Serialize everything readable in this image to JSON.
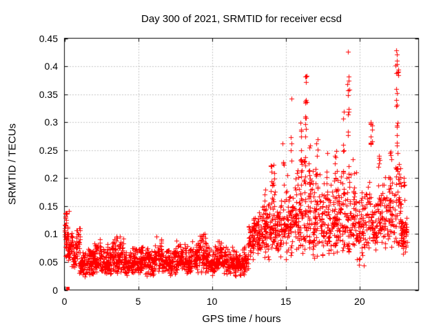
{
  "chart_data": {
    "type": "scatter",
    "title": "Day 300 of 2021, SRMTID for receiver ecsd",
    "xlabel": "GPS time / hours",
    "ylabel": "SRMTID / TECUs",
    "xlim": [
      0,
      24
    ],
    "ylim": [
      0,
      0.45
    ],
    "x_ticks": {
      "values": [
        0,
        5,
        10,
        15,
        20
      ],
      "labels": [
        "0",
        "5",
        "10",
        "15",
        "20"
      ]
    },
    "y_ticks": {
      "values": [
        0,
        0.05,
        0.1,
        0.15,
        0.2,
        0.25,
        0.3,
        0.35,
        0.4,
        0.45
      ],
      "labels": [
        "0",
        "0.05",
        "0.1",
        "0.15",
        "0.2",
        "0.25",
        "0.3",
        "0.35",
        "0.4",
        "0.45"
      ]
    },
    "grid": {
      "show": true,
      "color": "#8c8c8c",
      "dash": [
        1,
        3
      ]
    },
    "axis_color": "#000000",
    "background": "#ffffff",
    "point": {
      "color": "#ff0000",
      "marker": "plus",
      "size": 3
    },
    "legend": "none",
    "seed": 300,
    "bands": [
      [
        0.02,
        0.3,
        30,
        0.05,
        0.09,
        0.148
      ],
      [
        0.05,
        0.35,
        15,
        0.055,
        0.07,
        0.1
      ],
      [
        0.3,
        0.9,
        55,
        0.035,
        0.06,
        0.115
      ],
      [
        0.8,
        1.1,
        25,
        0.04,
        0.08,
        0.128
      ],
      [
        1.0,
        1.6,
        60,
        0.022,
        0.04,
        0.075
      ],
      [
        1.6,
        2.0,
        50,
        0.025,
        0.045,
        0.08
      ],
      [
        2.0,
        2.5,
        60,
        0.028,
        0.05,
        0.092
      ],
      [
        2.5,
        3.2,
        75,
        0.025,
        0.045,
        0.085
      ],
      [
        3.2,
        4.0,
        90,
        0.028,
        0.052,
        0.105
      ],
      [
        4.0,
        4.6,
        65,
        0.022,
        0.042,
        0.075
      ],
      [
        4.6,
        5.6,
        110,
        0.025,
        0.045,
        0.08
      ],
      [
        5.6,
        6.1,
        55,
        0.025,
        0.045,
        0.085
      ],
      [
        6.1,
        6.7,
        65,
        0.03,
        0.055,
        0.1
      ],
      [
        6.7,
        7.4,
        75,
        0.025,
        0.045,
        0.08
      ],
      [
        7.4,
        7.9,
        55,
        0.028,
        0.05,
        0.095
      ],
      [
        7.9,
        8.4,
        55,
        0.025,
        0.048,
        0.09
      ],
      [
        8.4,
        9.1,
        75,
        0.028,
        0.05,
        0.095
      ],
      [
        9.1,
        9.6,
        55,
        0.03,
        0.055,
        0.102
      ],
      [
        9.6,
        10.2,
        65,
        0.025,
        0.045,
        0.08
      ],
      [
        10.2,
        10.7,
        55,
        0.028,
        0.05,
        0.095
      ],
      [
        10.7,
        11.4,
        75,
        0.025,
        0.045,
        0.088
      ],
      [
        11.4,
        12.0,
        65,
        0.022,
        0.042,
        0.075
      ],
      [
        12.0,
        12.45,
        50,
        0.025,
        0.045,
        0.082
      ],
      [
        12.45,
        12.8,
        45,
        0.05,
        0.08,
        0.125
      ],
      [
        12.8,
        13.3,
        55,
        0.06,
        0.1,
        0.155
      ],
      [
        13.3,
        13.8,
        55,
        0.055,
        0.11,
        0.165
      ],
      [
        13.8,
        14.4,
        60,
        0.04,
        0.1,
        0.185
      ],
      [
        14.4,
        15.0,
        55,
        0.05,
        0.11,
        0.175
      ],
      [
        15.0,
        15.6,
        60,
        0.04,
        0.12,
        0.21
      ],
      [
        15.6,
        16.2,
        60,
        0.05,
        0.13,
        0.23
      ],
      [
        16.2,
        16.8,
        60,
        0.05,
        0.13,
        0.25
      ],
      [
        16.8,
        17.4,
        60,
        0.05,
        0.12,
        0.22
      ],
      [
        17.4,
        18.0,
        60,
        0.03,
        0.1,
        0.2
      ],
      [
        18.0,
        18.6,
        60,
        0.05,
        0.11,
        0.22
      ],
      [
        18.6,
        19.2,
        55,
        0.06,
        0.12,
        0.23
      ],
      [
        19.2,
        19.8,
        55,
        0.05,
        0.12,
        0.22
      ],
      [
        19.8,
        20.4,
        55,
        0.03,
        0.1,
        0.19
      ],
      [
        20.4,
        21.0,
        55,
        0.06,
        0.11,
        0.21
      ],
      [
        21.0,
        21.6,
        55,
        0.07,
        0.11,
        0.19
      ],
      [
        21.6,
        22.2,
        55,
        0.07,
        0.12,
        0.22
      ],
      [
        22.2,
        22.8,
        55,
        0.07,
        0.13,
        0.24
      ],
      [
        22.8,
        23.25,
        50,
        0.06,
        0.1,
        0.135
      ]
    ],
    "columns": [
      [
        0.08,
        12,
        0.05,
        0.148
      ],
      [
        13.6,
        5,
        0.14,
        0.18
      ],
      [
        14.05,
        10,
        0.14,
        0.225
      ],
      [
        14.2,
        8,
        0.15,
        0.235
      ],
      [
        14.85,
        5,
        0.18,
        0.265
      ],
      [
        15.35,
        4,
        0.2,
        0.345
      ],
      [
        16.05,
        12,
        0.18,
        0.3
      ],
      [
        16.35,
        16,
        0.2,
        0.385
      ],
      [
        16.6,
        8,
        0.18,
        0.29
      ],
      [
        17.1,
        8,
        0.17,
        0.27
      ],
      [
        17.8,
        6,
        0.16,
        0.25
      ],
      [
        18.35,
        8,
        0.17,
        0.26
      ],
      [
        18.9,
        10,
        0.18,
        0.32
      ],
      [
        19.25,
        14,
        0.19,
        0.385
      ],
      [
        19.6,
        6,
        0.16,
        0.25
      ],
      [
        20.8,
        10,
        0.24,
        0.31
      ],
      [
        21.3,
        6,
        0.17,
        0.24
      ],
      [
        22.1,
        6,
        0.18,
        0.26
      ],
      [
        22.55,
        22,
        0.2,
        0.405
      ],
      [
        23.0,
        6,
        0.15,
        0.22
      ]
    ],
    "outliers": [
      [
        16.33,
        0.382
      ],
      [
        19.2,
        0.426
      ],
      [
        15.37,
        0.342
      ],
      [
        22.48,
        0.429
      ],
      [
        22.55,
        0.421
      ],
      [
        22.52,
        0.41
      ],
      [
        22.42,
        0.401
      ],
      [
        22.6,
        0.394
      ],
      [
        22.5,
        0.388
      ],
      [
        19.25,
        0.381
      ],
      [
        19.18,
        0.368
      ]
    ],
    "special_points": [
      {
        "x": 0.21,
        "y": 0.003,
        "marker": "square",
        "size": 5
      }
    ]
  }
}
